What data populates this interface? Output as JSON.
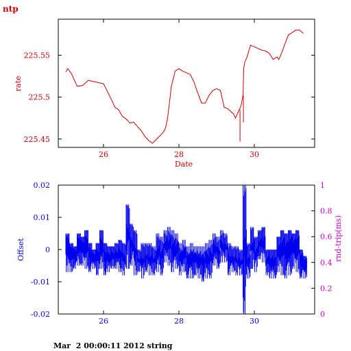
{
  "page_title": "ntp",
  "footer_caption": "Mar  2 00:00:11 2012 string",
  "colors": {
    "rate": "#cc0000",
    "offset": "#0000ee",
    "rtt": "#cc00cc",
    "axis": "#000000"
  },
  "chart_data": [
    {
      "type": "line",
      "title": "",
      "xlabel": "Date",
      "ylabel": "rate",
      "xlim": [
        24.8,
        31.6
      ],
      "ylim": [
        225.44,
        225.593
      ],
      "x_ticks": [
        26,
        28,
        30
      ],
      "y_ticks": [
        225.45,
        225.5,
        225.55
      ],
      "y_tick_labels": [
        "225.45",
        "225.5",
        "225.55"
      ],
      "grid": false,
      "series": [
        {
          "x": [
            25.0,
            25.05,
            25.15,
            25.3,
            25.45,
            25.6,
            25.8,
            26.0,
            26.2,
            26.3,
            26.4,
            26.5,
            26.6,
            26.7,
            26.8,
            26.9,
            27.0,
            27.1,
            27.2,
            27.3,
            27.5,
            27.6,
            27.65,
            27.7,
            27.8,
            27.9,
            28.0,
            28.1,
            28.2,
            28.3,
            28.4,
            28.5,
            28.6,
            28.7,
            28.8,
            28.9,
            29.0,
            29.1,
            29.2,
            29.3,
            29.4,
            29.45,
            29.5,
            29.6,
            29.65,
            29.7,
            29.72,
            29.75,
            29.8,
            29.9,
            30.0,
            30.1,
            30.15,
            30.2,
            30.3,
            30.4,
            30.5,
            30.6,
            30.65,
            30.7,
            30.8,
            30.9,
            31.0,
            31.1,
            31.2,
            31.3
          ],
          "y": [
            225.53,
            225.534,
            225.528,
            225.513,
            225.514,
            225.52,
            225.518,
            225.516,
            225.498,
            225.488,
            225.485,
            225.477,
            225.474,
            225.469,
            225.47,
            225.465,
            225.46,
            225.453,
            225.448,
            225.445,
            225.454,
            225.459,
            225.464,
            225.475,
            225.513,
            225.531,
            225.534,
            225.531,
            225.529,
            225.527,
            225.518,
            225.505,
            225.493,
            225.493,
            225.502,
            225.508,
            225.51,
            225.508,
            225.488,
            225.486,
            225.482,
            225.48,
            225.475,
            225.485,
            225.49,
            225.502,
            225.535,
            225.542,
            225.547,
            225.562,
            225.56,
            225.558,
            225.557,
            225.556,
            225.555,
            225.552,
            225.545,
            225.548,
            225.545,
            225.55,
            225.562,
            225.574,
            225.577,
            225.58,
            225.58,
            225.576
          ],
          "spikes": [
            {
              "x": 29.62,
              "y": 225.447
            },
            {
              "x": 29.71,
              "y": 225.47
            }
          ]
        }
      ]
    },
    {
      "type": "line",
      "title": "",
      "xlabel": "",
      "ylabel": "Offset",
      "y2label": "rnd-trip(ms)",
      "xlim": [
        24.8,
        31.6
      ],
      "ylim": [
        -0.02,
        0.02
      ],
      "y2lim": [
        0,
        1
      ],
      "x_ticks": [
        26,
        28,
        30
      ],
      "y_ticks": [
        -0.02,
        -0.01,
        0,
        0.01,
        0.02
      ],
      "y_tick_labels": [
        "-0.02",
        "-0.01",
        "0",
        "0.01",
        "0.02"
      ],
      "y2_ticks": [
        0,
        0.2,
        0.4,
        0.6,
        0.8,
        1
      ],
      "y2_tick_labels": [
        "0",
        "0.2",
        "0.4",
        "0.6",
        "0.8",
        "1"
      ],
      "grid": false,
      "series": [
        {
          "x": [
            25.0,
            25.1,
            25.2,
            25.3,
            25.4,
            25.5,
            25.6,
            25.7,
            25.8,
            25.9,
            26.0,
            26.1,
            26.2,
            26.3,
            26.4,
            26.5,
            26.6,
            26.7,
            26.8,
            26.9,
            27.0,
            27.1,
            27.2,
            27.3,
            27.4,
            27.5,
            27.6,
            27.7,
            27.8,
            27.9,
            28.0,
            28.1,
            28.2,
            28.3,
            28.4,
            28.5,
            28.6,
            28.7,
            28.8,
            28.9,
            29.0,
            29.1,
            29.2,
            29.3,
            29.4,
            29.5,
            29.6,
            29.7,
            29.8,
            29.9,
            30.0,
            30.1,
            30.2,
            30.3,
            30.4,
            30.5,
            30.6,
            30.7,
            30.8,
            30.9,
            31.0,
            31.1,
            31.2,
            31.3
          ],
          "y_min": [
            -0.007,
            -0.007,
            -0.006,
            -0.005,
            -0.005,
            -0.006,
            -0.007,
            -0.006,
            -0.008,
            -0.006,
            -0.008,
            -0.007,
            -0.006,
            -0.006,
            -0.007,
            -0.008,
            -0.006,
            -0.005,
            -0.008,
            -0.007,
            -0.009,
            -0.007,
            -0.008,
            -0.008,
            -0.007,
            -0.008,
            -0.004,
            -0.005,
            -0.007,
            -0.006,
            -0.008,
            -0.007,
            -0.009,
            -0.009,
            -0.008,
            -0.009,
            -0.01,
            -0.009,
            -0.009,
            -0.005,
            -0.006,
            -0.004,
            -0.004,
            -0.008,
            -0.007,
            -0.008,
            -0.008,
            -0.02,
            -0.009,
            -0.006,
            -0.007,
            -0.003,
            -0.004,
            -0.008,
            -0.009,
            -0.009,
            -0.007,
            -0.008,
            -0.009,
            -0.008,
            -0.006,
            -0.007,
            -0.009,
            -0.009
          ],
          "y_max": [
            0.005,
            0.002,
            0.001,
            0.005,
            0.004,
            0.006,
            0.002,
            0.0,
            0.002,
            0.006,
            0.002,
            0.001,
            0.001,
            0.002,
            0.003,
            0.002,
            0.014,
            0.008,
            0.006,
            0.0,
            0.002,
            0.002,
            0.002,
            0.001,
            0.005,
            0.004,
            0.006,
            0.007,
            0.006,
            0.005,
            0.002,
            0.003,
            0.001,
            0.002,
            0.001,
            0.001,
            0.001,
            0.002,
            0.003,
            0.005,
            0.004,
            0.006,
            0.005,
            0.002,
            0.001,
            0.001,
            0.0,
            0.02,
            0.002,
            0.007,
            0.004,
            0.006,
            0.007,
            0.0,
            0.0,
            0.0,
            0.004,
            0.006,
            0.005,
            0.006,
            0.005,
            0.006,
            0.0,
            -0.002
          ]
        }
      ]
    }
  ]
}
